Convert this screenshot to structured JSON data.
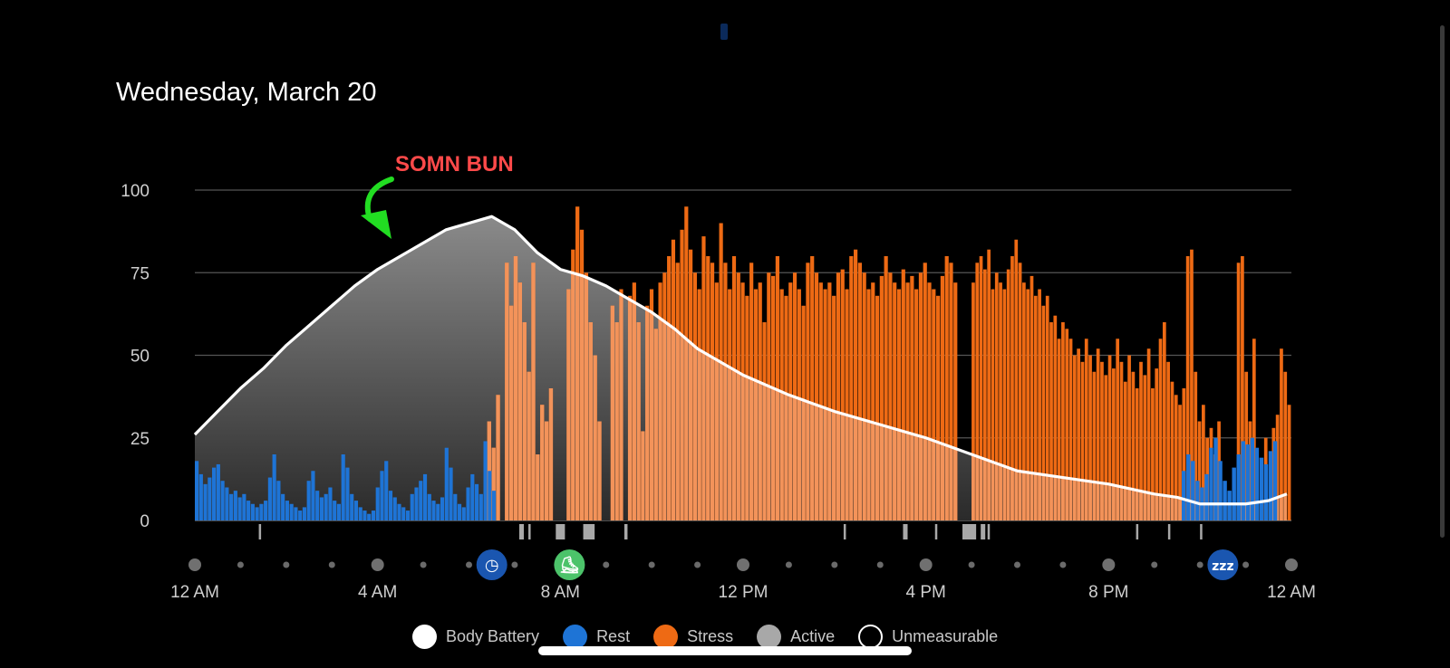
{
  "header": {
    "date": "Wednesday, March 20"
  },
  "annotation": {
    "text": "SOMN BUN",
    "color": "#ff4a4a",
    "arrow_color": "#22dd22"
  },
  "legend": [
    {
      "label": "Body Battery",
      "color": "#ffffff",
      "style": "filled"
    },
    {
      "label": "Rest",
      "color": "#1e74d6",
      "style": "filled"
    },
    {
      "label": "Stress",
      "color": "#ee6a14",
      "style": "filled"
    },
    {
      "label": "Active",
      "color": "#a8a8a8",
      "style": "filled"
    },
    {
      "label": "Unmeasurable",
      "color": "#ffffff",
      "style": "outline"
    }
  ],
  "timeline_icons": [
    {
      "name": "clock-icon",
      "hour": 6.5,
      "color": "#1a56b0",
      "glyph": "◷"
    },
    {
      "name": "shoe-icon",
      "hour": 8.2,
      "color": "#4cc36a",
      "glyph": "⛸"
    },
    {
      "name": "sleep-icon",
      "hour": 22.5,
      "color": "#1a56b0",
      "glyph": "zzz"
    }
  ],
  "chart_data": {
    "type": "area",
    "x_unit": "hour of day",
    "xlim": [
      0,
      24
    ],
    "ylim": [
      0,
      100
    ],
    "y_ticks": [
      0,
      25,
      50,
      75,
      100
    ],
    "x_ticks": [
      {
        "label": "12 AM",
        "hour": 0
      },
      {
        "label": "4 AM",
        "hour": 4
      },
      {
        "label": "8 AM",
        "hour": 8
      },
      {
        "label": "12 PM",
        "hour": 12
      },
      {
        "label": "4 PM",
        "hour": 16
      },
      {
        "label": "8 PM",
        "hour": 20
      },
      {
        "label": "12 AM",
        "hour": 24
      }
    ],
    "grid": true,
    "body_battery": {
      "hours": [
        0,
        0.5,
        1,
        1.5,
        2,
        2.5,
        3,
        3.5,
        4,
        4.5,
        5,
        5.5,
        6,
        6.5,
        7,
        7.5,
        8,
        8.5,
        9,
        9.5,
        10,
        10.5,
        11,
        12,
        13,
        14,
        15,
        16,
        17,
        18,
        19,
        20,
        21,
        21.5,
        22,
        22.5,
        23,
        23.5,
        23.9
      ],
      "values": [
        26,
        33,
        40,
        46,
        53,
        59,
        65,
        71,
        76,
        80,
        84,
        88,
        90,
        92,
        88,
        81,
        76,
        74,
        71,
        67,
        63,
        58,
        52,
        44,
        38,
        33,
        29,
        25,
        20,
        15,
        13,
        11,
        8,
        7,
        5,
        5,
        5,
        6,
        8
      ]
    },
    "rest_segments": [
      {
        "start": 0,
        "end": 6.6,
        "values": [
          18,
          14,
          11,
          13,
          16,
          17,
          12,
          10,
          8,
          9,
          7,
          8,
          6,
          5,
          4,
          5,
          6,
          13,
          20,
          12,
          8,
          6,
          5,
          4,
          3,
          4,
          12,
          15,
          9,
          7,
          8,
          10,
          6,
          5,
          20,
          16,
          8,
          6,
          4,
          3,
          2,
          3,
          10,
          15,
          18,
          9,
          7,
          5,
          4,
          3,
          8,
          10,
          12,
          14,
          8,
          6,
          5,
          7,
          22,
          16,
          8,
          5,
          4,
          10,
          14,
          11,
          8,
          24,
          15,
          9
        ]
      },
      {
        "start": 21.6,
        "end": 23.7,
        "values": [
          15,
          20,
          18,
          12,
          10,
          14,
          22,
          25,
          18,
          12,
          9,
          16,
          20,
          24,
          23,
          25,
          22,
          19,
          17,
          21,
          24
        ]
      }
    ],
    "stress_segments": [
      {
        "start": 6.4,
        "end": 9.2,
        "values": [
          30,
          22,
          38,
          0,
          78,
          65,
          80,
          72,
          60,
          45,
          78,
          20,
          35,
          30,
          40,
          0,
          0,
          0,
          70,
          82,
          95,
          88,
          75,
          60,
          50,
          30,
          0,
          0,
          0
        ]
      },
      {
        "start": 9.1,
        "end": 16.7,
        "values": [
          65,
          60,
          70,
          0,
          68,
          72,
          60,
          27,
          65,
          70,
          58,
          72,
          75,
          80,
          85,
          78,
          88,
          95,
          82,
          75,
          70,
          86,
          80,
          78,
          72,
          90,
          78,
          70,
          80,
          75,
          72,
          68,
          78,
          70,
          72,
          60,
          75,
          74,
          80,
          70,
          68,
          72,
          75,
          70,
          65,
          78,
          80,
          75,
          72,
          70,
          72,
          68,
          75,
          76,
          70,
          80,
          82,
          78,
          75,
          70,
          72,
          68,
          74,
          80,
          75,
          72,
          70,
          76,
          72,
          74,
          70,
          75,
          78,
          72,
          70,
          68,
          74,
          80,
          78,
          72
        ]
      },
      {
        "start": 17.0,
        "end": 24.0,
        "values": [
          72,
          78,
          80,
          76,
          82,
          70,
          75,
          72,
          70,
          76,
          80,
          85,
          78,
          72,
          70,
          74,
          68,
          70,
          65,
          68,
          60,
          62,
          55,
          60,
          58,
          55,
          50,
          52,
          48,
          55,
          50,
          45,
          52,
          48,
          44,
          50,
          46,
          55,
          48,
          42,
          50,
          45,
          40,
          48,
          44,
          52,
          40,
          46,
          55,
          60,
          48,
          42,
          38,
          35,
          40,
          80,
          82,
          45,
          30,
          35,
          25,
          28,
          20,
          30,
          0,
          0,
          0,
          0,
          78,
          80,
          45,
          30,
          55,
          0,
          0,
          25,
          0,
          28,
          32,
          52,
          45,
          35
        ]
      }
    ],
    "active_segments": [
      {
        "start": 1.4,
        "end": 1.45
      },
      {
        "start": 7.1,
        "end": 7.2
      },
      {
        "start": 7.3,
        "end": 7.35
      },
      {
        "start": 7.9,
        "end": 8.1
      },
      {
        "start": 8.5,
        "end": 8.75
      },
      {
        "start": 9.4,
        "end": 9.47
      },
      {
        "start": 14.2,
        "end": 14.25
      },
      {
        "start": 15.5,
        "end": 15.6
      },
      {
        "start": 16.2,
        "end": 16.25
      },
      {
        "start": 16.8,
        "end": 17.1
      },
      {
        "start": 17.2,
        "end": 17.3
      },
      {
        "start": 17.35,
        "end": 17.4
      },
      {
        "start": 20.6,
        "end": 20.65
      },
      {
        "start": 21.3,
        "end": 21.35
      },
      {
        "start": 22.0,
        "end": 22.05
      }
    ]
  }
}
